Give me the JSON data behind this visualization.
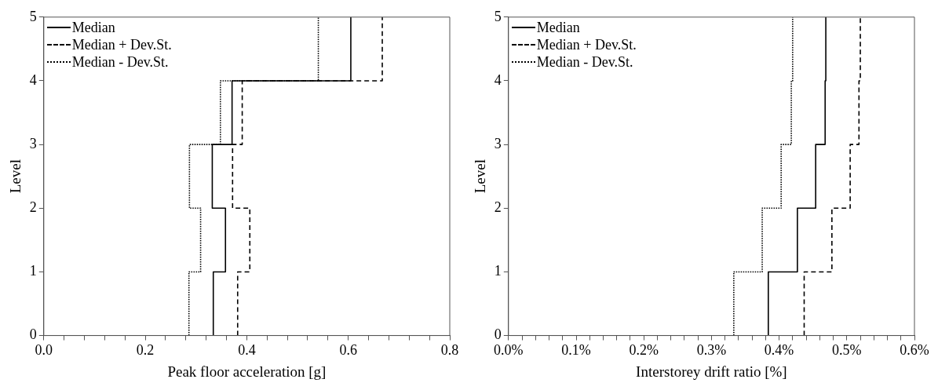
{
  "chart_data": [
    {
      "type": "line",
      "xlabel": "Peak floor acceleration [g]",
      "ylabel": "Level",
      "xlim": [
        0,
        0.8
      ],
      "ylim": [
        0,
        5
      ],
      "xticks": [
        {
          "value": 0,
          "label": "0.0"
        },
        {
          "value": 0.04,
          "label": null
        },
        {
          "value": 0.08,
          "label": null
        },
        {
          "value": 0.12,
          "label": null
        },
        {
          "value": 0.16,
          "label": null
        },
        {
          "value": 0.2,
          "label": "0.2"
        },
        {
          "value": 0.24,
          "label": null
        },
        {
          "value": 0.28,
          "label": null
        },
        {
          "value": 0.32,
          "label": null
        },
        {
          "value": 0.36,
          "label": null
        },
        {
          "value": 0.4,
          "label": "0.4"
        },
        {
          "value": 0.44,
          "label": null
        },
        {
          "value": 0.48,
          "label": null
        },
        {
          "value": 0.52,
          "label": null
        },
        {
          "value": 0.56,
          "label": null
        },
        {
          "value": 0.6,
          "label": "0.6"
        },
        {
          "value": 0.64,
          "label": null
        },
        {
          "value": 0.68,
          "label": null
        },
        {
          "value": 0.72,
          "label": null
        },
        {
          "value": 0.76,
          "label": null
        },
        {
          "value": 0.8,
          "label": "0.8"
        }
      ],
      "yticks": [
        0,
        1,
        2,
        3,
        4,
        5
      ],
      "grid": false,
      "legend": "top left",
      "marker": "none",
      "series": [
        {
          "name": "Median",
          "color": "#000000",
          "line_style": "solid",
          "x": [
            0.334,
            0.334,
            0.358,
            0.358,
            0.332,
            0.332,
            0.371,
            0.371,
            0.605,
            0.605
          ],
          "values": [
            0,
            1,
            1,
            2,
            2,
            3,
            3,
            4,
            4,
            5
          ]
        },
        {
          "name": "Median + Dev.St.",
          "color": "#000000",
          "line_style": "dashed",
          "x": [
            0.382,
            0.382,
            0.406,
            0.406,
            0.372,
            0.372,
            0.391,
            0.391,
            0.667,
            0.667
          ],
          "values": [
            0,
            1,
            1,
            2,
            2,
            3,
            3,
            4,
            4,
            5
          ]
        },
        {
          "name": "Median - Dev.St.",
          "color": "#000000",
          "line_style": "dotted",
          "x": [
            0.286,
            0.286,
            0.309,
            0.309,
            0.287,
            0.287,
            0.348,
            0.348,
            0.541,
            0.541
          ],
          "values": [
            0,
            1,
            1,
            2,
            2,
            3,
            3,
            4,
            4,
            5
          ]
        }
      ]
    },
    {
      "type": "line",
      "xlabel": "Interstorey drift ratio [%]",
      "ylabel": "Level",
      "xlim": [
        0,
        0.6
      ],
      "ylim": [
        0,
        5
      ],
      "xticks": [
        {
          "value": 0,
          "label": "0.0%"
        },
        {
          "value": 0.02,
          "label": null
        },
        {
          "value": 0.04,
          "label": null
        },
        {
          "value": 0.06,
          "label": null
        },
        {
          "value": 0.08,
          "label": null
        },
        {
          "value": 0.1,
          "label": "0.1%"
        },
        {
          "value": 0.12,
          "label": null
        },
        {
          "value": 0.14,
          "label": null
        },
        {
          "value": 0.16,
          "label": null
        },
        {
          "value": 0.18,
          "label": null
        },
        {
          "value": 0.2,
          "label": "0.2%"
        },
        {
          "value": 0.22,
          "label": null
        },
        {
          "value": 0.24,
          "label": null
        },
        {
          "value": 0.26,
          "label": null
        },
        {
          "value": 0.28,
          "label": null
        },
        {
          "value": 0.3,
          "label": "0.3%"
        },
        {
          "value": 0.32,
          "label": null
        },
        {
          "value": 0.34,
          "label": null
        },
        {
          "value": 0.36,
          "label": null
        },
        {
          "value": 0.38,
          "label": null
        },
        {
          "value": 0.4,
          "label": "0.4%"
        },
        {
          "value": 0.42,
          "label": null
        },
        {
          "value": 0.44,
          "label": null
        },
        {
          "value": 0.46,
          "label": null
        },
        {
          "value": 0.48,
          "label": null
        },
        {
          "value": 0.5,
          "label": "0.5%"
        },
        {
          "value": 0.52,
          "label": null
        },
        {
          "value": 0.54,
          "label": null
        },
        {
          "value": 0.56,
          "label": null
        },
        {
          "value": 0.58,
          "label": null
        },
        {
          "value": 0.6,
          "label": "0.6%"
        }
      ],
      "yticks": [
        0,
        1,
        2,
        3,
        4,
        5
      ],
      "grid": false,
      "legend": "top left",
      "marker": "none",
      "series": [
        {
          "name": "Median",
          "color": "#000000",
          "line_style": "solid",
          "x": [
            0.384,
            0.384,
            0.427,
            0.427,
            0.454,
            0.454,
            0.468,
            0.468,
            0.469,
            0.469
          ],
          "values": [
            0,
            1,
            1,
            2,
            2,
            3,
            3,
            4,
            4,
            5
          ]
        },
        {
          "name": "Median + Dev.St.",
          "color": "#000000",
          "line_style": "dashed",
          "x": [
            0.437,
            0.437,
            0.478,
            0.478,
            0.505,
            0.505,
            0.518,
            0.518,
            0.52,
            0.52
          ],
          "values": [
            0,
            1,
            1,
            2,
            2,
            3,
            3,
            4,
            4,
            5
          ]
        },
        {
          "name": "Median - Dev.St.",
          "color": "#000000",
          "line_style": "dotted",
          "x": [
            0.333,
            0.333,
            0.375,
            0.375,
            0.403,
            0.403,
            0.418,
            0.418,
            0.42,
            0.42
          ],
          "values": [
            0,
            1,
            1,
            2,
            2,
            3,
            3,
            4,
            4,
            5
          ]
        }
      ]
    }
  ]
}
